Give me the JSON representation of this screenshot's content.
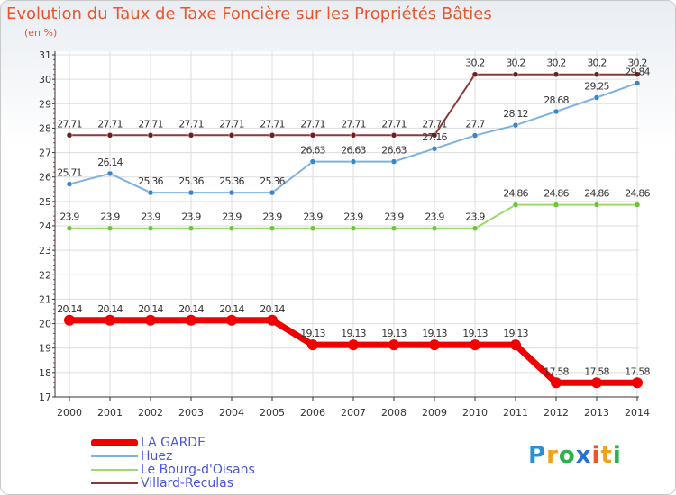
{
  "header": {
    "title": "Evolution du Taux de Taxe Foncière sur les Propriétés Bâties",
    "unit": "(en %)"
  },
  "logo": {
    "text": "Proxiti"
  },
  "chart_data": {
    "type": "line",
    "title": "Evolution du Taux de Taxe Foncière sur les Propriétés Bâties",
    "ylabel": "(en %)",
    "categories": [
      "2000",
      "2001",
      "2002",
      "2003",
      "2004",
      "2005",
      "2006",
      "2007",
      "2008",
      "2009",
      "2010",
      "2011",
      "2012",
      "2013",
      "2014"
    ],
    "yticks": [
      "17",
      "18",
      "19",
      "20",
      "21",
      "22",
      "23",
      "24",
      "25",
      "26",
      "27",
      "28",
      "29",
      "30",
      "31"
    ],
    "ylim": [
      17,
      31
    ],
    "series": [
      {
        "name": "LA GARDE",
        "color": "#f00000",
        "key": "garde",
        "values": [
          20.14,
          20.14,
          20.14,
          20.14,
          20.14,
          20.14,
          19.13,
          19.13,
          19.13,
          19.13,
          19.13,
          19.13,
          17.58,
          17.58,
          17.58
        ],
        "labels": [
          "20.14",
          "20.14",
          "20.14",
          "20.14",
          "20.14",
          "20.14",
          "19.13",
          "19.13",
          "19.13",
          "19.13",
          "19.13",
          "19.13",
          "17.58",
          "17.58",
          "17.58"
        ]
      },
      {
        "name": "Huez",
        "color": "#7fb2e0",
        "key": "huez",
        "values": [
          25.71,
          26.14,
          25.36,
          25.36,
          25.36,
          25.36,
          26.63,
          26.63,
          26.63,
          27.16,
          27.7,
          28.12,
          28.68,
          29.25,
          29.84
        ],
        "labels": [
          "25.71",
          "26.14",
          "25.36",
          "25.36",
          "25.36",
          "25.36",
          "26.63",
          "26.63",
          "26.63",
          "27.16",
          "27.7",
          "28.12",
          "28.68",
          "29.25",
          "29.84"
        ]
      },
      {
        "name": "Le Bourg-d'Oisans",
        "color": "#9bd96a",
        "key": "bourg",
        "values": [
          23.9,
          23.9,
          23.9,
          23.9,
          23.9,
          23.9,
          23.9,
          23.9,
          23.9,
          23.9,
          23.9,
          24.86,
          24.86,
          24.86,
          24.86
        ],
        "labels": [
          "23.9",
          "23.9",
          "23.9",
          "23.9",
          "23.9",
          "23.9",
          "23.9",
          "23.9",
          "23.9",
          "23.9",
          "23.9",
          "24.86",
          "24.86",
          "24.86",
          "24.86"
        ]
      },
      {
        "name": "Villard-Reculas",
        "color": "#8b3a3a",
        "key": "villard",
        "values": [
          27.71,
          27.71,
          27.71,
          27.71,
          27.71,
          27.71,
          27.71,
          27.71,
          27.71,
          27.71,
          30.2,
          30.2,
          30.2,
          30.2,
          30.2
        ],
        "labels": [
          "27.71",
          "27.71",
          "27.71",
          "27.71",
          "27.71",
          "27.71",
          "27.71",
          "27.71",
          "27.71",
          "27.71",
          "30.2",
          "30.2",
          "30.2",
          "30.2",
          "30.2"
        ]
      }
    ]
  }
}
